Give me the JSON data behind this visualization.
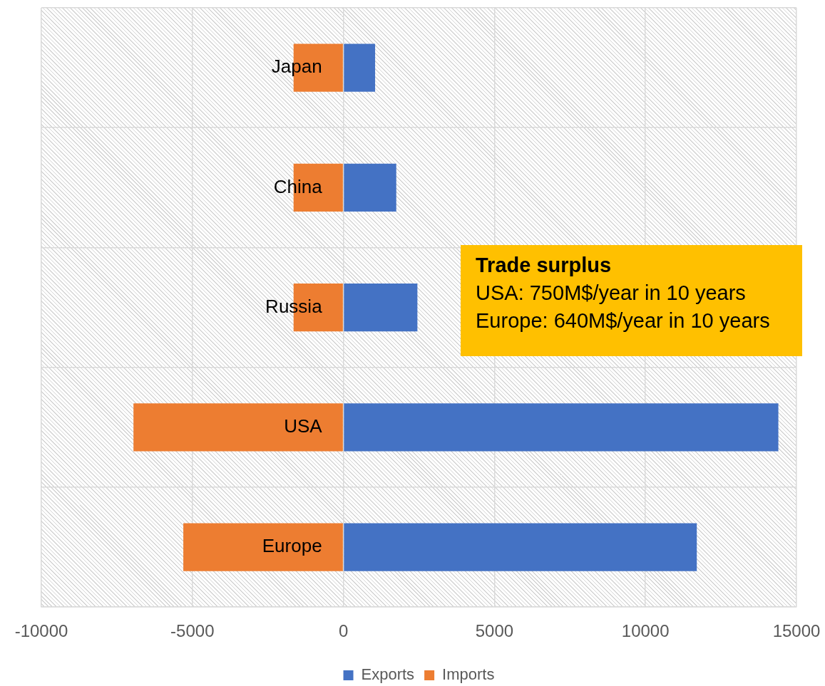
{
  "chart_data": {
    "type": "bar",
    "orientation": "horizontal",
    "stacked": true,
    "categories": [
      "Japan",
      "China",
      "Russia",
      "USA",
      "Europe"
    ],
    "series": [
      {
        "name": "Exports",
        "color": "#4472c4",
        "values": [
          1050,
          1750,
          2450,
          14400,
          11700
        ]
      },
      {
        "name": "Imports",
        "color": "#ed7d31",
        "values": [
          -1650,
          -1650,
          -1650,
          -6950,
          -5300
        ]
      }
    ],
    "xlim": [
      -10000,
      15000
    ],
    "xticks": [
      -10000,
      -5000,
      0,
      5000,
      10000,
      15000
    ],
    "grid": true,
    "legend": "bottom",
    "annotations": [
      "Trade surplus",
      "USA: 750M$/year in 10 years",
      "Europe: 640M$/year in 10 years"
    ]
  }
}
